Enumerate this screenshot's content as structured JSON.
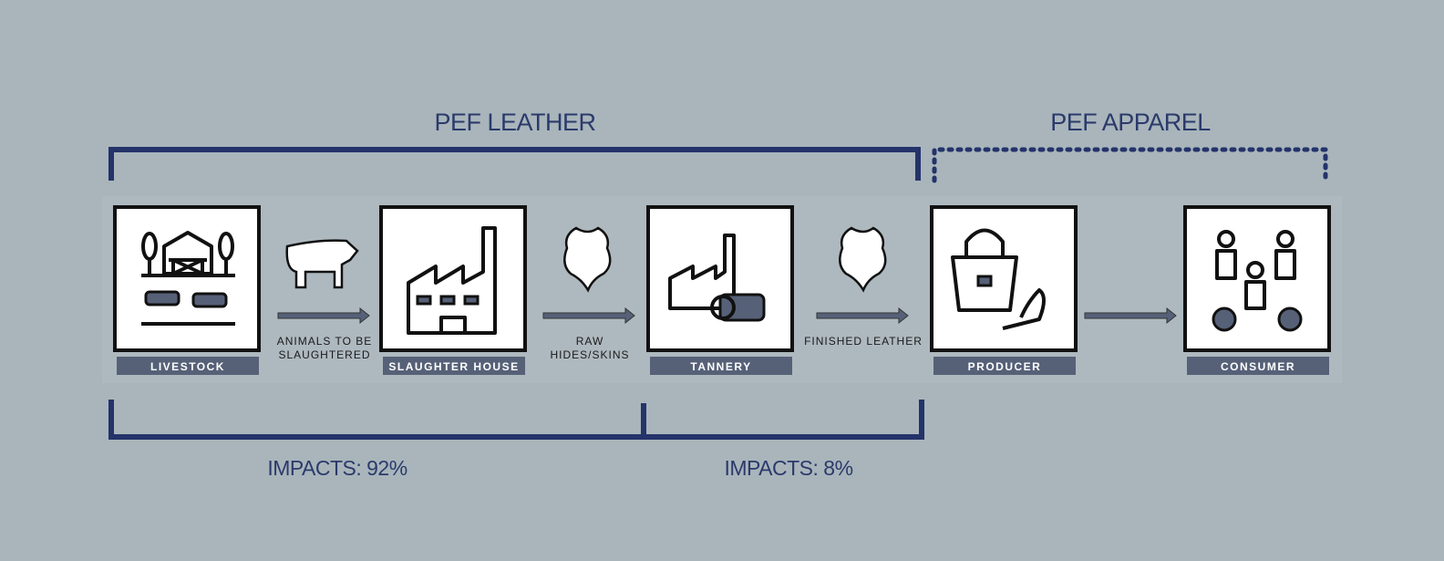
{
  "groups": [
    {
      "title": "PEF LEATHER"
    },
    {
      "title": "PEF APPAREL"
    }
  ],
  "nodes": [
    {
      "label": "LIVESTOCK"
    },
    {
      "label": "SLAUGHTER HOUSE"
    },
    {
      "label": "TANNERY"
    },
    {
      "label": "PRODUCER"
    },
    {
      "label": "CONSUMER"
    }
  ],
  "flows": [
    {
      "lines": [
        "ANIMALS TO BE",
        "SLAUGHTERED"
      ]
    },
    {
      "lines": [
        "RAW",
        "HIDES/SKINS"
      ]
    },
    {
      "lines": [
        "FINISHED LEATHER"
      ]
    }
  ],
  "impacts": [
    {
      "label": "IMPACTS: 92%"
    },
    {
      "label": "IMPACTS: 8%"
    }
  ]
}
